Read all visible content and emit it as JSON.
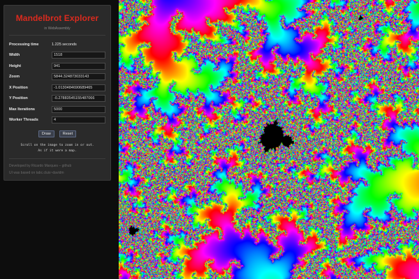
{
  "panel": {
    "title": "Mandelbrot Explorer",
    "subtitle": "in WebAssembly",
    "fields": {
      "processing_time": {
        "label": "Processing time",
        "value": "1.225 seconds"
      },
      "width": {
        "label": "Width",
        "value": "1518"
      },
      "height": {
        "label": "Height",
        "value": "941"
      },
      "zoom": {
        "label": "Zoom",
        "value": "5844.324873033143"
      },
      "x_position": {
        "label": "X Position",
        "value": "-1.0130484690689465"
      },
      "y_position": {
        "label": "Y Position",
        "value": "-0.27883545155487066"
      },
      "max_iterations": {
        "label": "Max Iterations",
        "value": "5000"
      },
      "worker_threads": {
        "label": "Worker Threads",
        "value": "4"
      }
    },
    "buttons": {
      "draw": "Draw",
      "reset": "Reset"
    },
    "hint": {
      "line1": "Scroll on the image to zoom in or out.",
      "line2": "As if it were a map."
    },
    "credits": {
      "line1": "Developed by Ricardo Marques – github",
      "line2": "UI was based on tabc.cluis~davidm"
    }
  },
  "colors": {
    "title": "#dc2a1e",
    "panel_background": "#2a2a2a",
    "page_background": "#0d0d0d"
  }
}
